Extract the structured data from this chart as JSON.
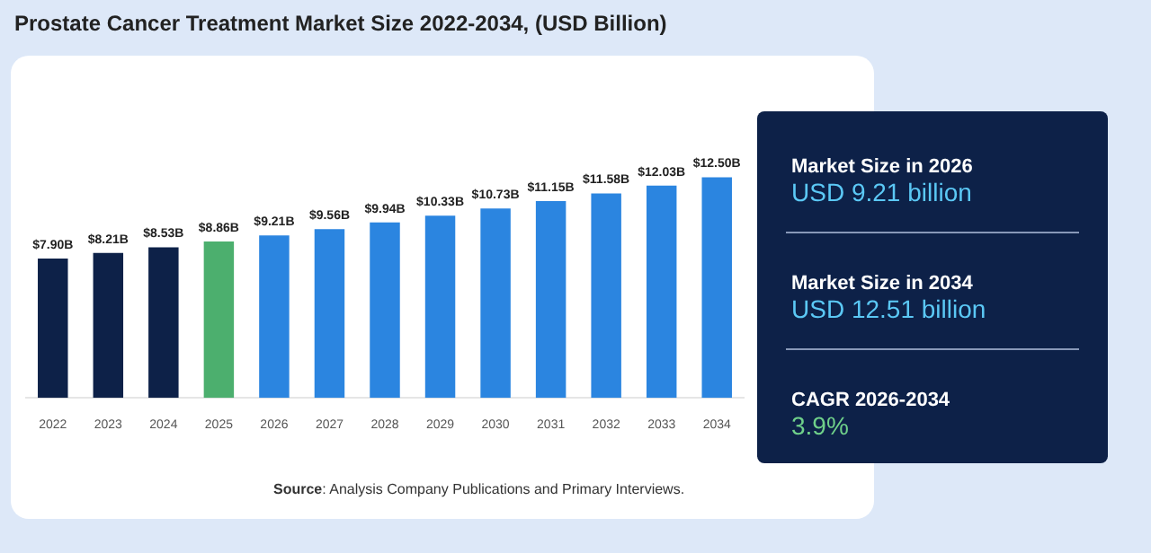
{
  "chart_data": [
    {
      "type": "bar",
      "title": "Prostate Cancer Treatment Market Size 2022-2034, (USD Billion)",
      "categories": [
        "2022",
        "2023",
        "2024",
        "2025",
        "2026",
        "2027",
        "2028",
        "2029",
        "2030",
        "2031",
        "2032",
        "2033",
        "2034"
      ],
      "values": [
        7.9,
        8.21,
        8.53,
        8.86,
        9.21,
        9.56,
        9.94,
        10.33,
        10.73,
        11.15,
        11.58,
        12.03,
        12.5
      ],
      "colors": [
        "#0d2148",
        "#0d2148",
        "#0d2148",
        "#4caf6e",
        "#2b85e0",
        "#2b85e0",
        "#2b85e0",
        "#2b85e0",
        "#2b85e0",
        "#2b85e0",
        "#2b85e0",
        "#2b85e0",
        "#2b85e0"
      ],
      "value_labels": [
        "$7.90B",
        "$8.21B",
        "$8.53B",
        "$8.86B",
        "$9.21B",
        "$9.56B",
        "$9.94B",
        "$10.33B",
        "$10.73B",
        "$11.15B",
        "$11.58B",
        "$12.03B",
        "$12.50B"
      ],
      "annotations": [
        "Source: Analysis Company Publications and Primary Interviews."
      ]
    },
    {
      "type": "other",
      "annotations": [
        "Market Size in 2026",
        "USD 9.21 billion",
        "Market Size in 2034",
        "USD 12.51 billion",
        "CAGR 2026-2034",
        "3.9%"
      ]
    }
  ]
}
